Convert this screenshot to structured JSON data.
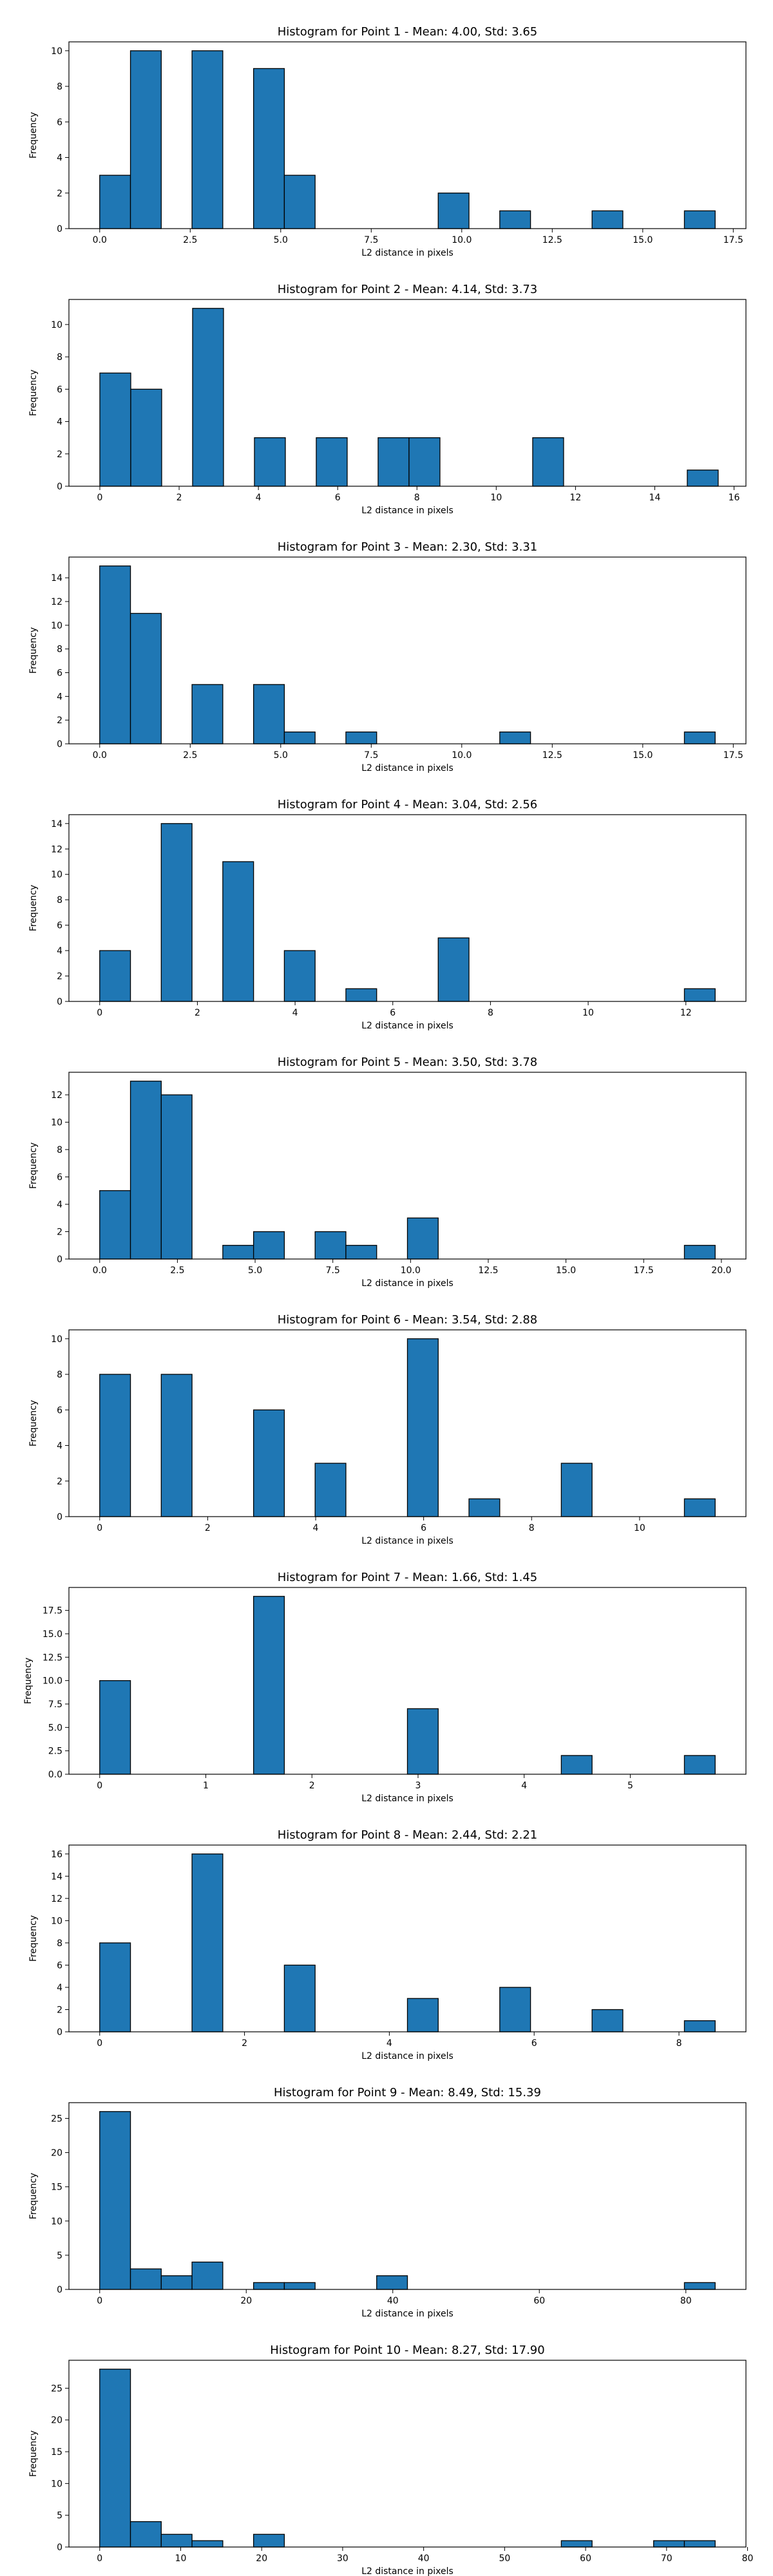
{
  "chart_data": [
    {
      "type": "bar",
      "title": "Histogram for Point 1 - Mean: 4.00, Std: 3.65",
      "xlabel": "L2 distance in pixels",
      "ylabel": "Frequency",
      "xlim": [
        -0.85,
        17.85
      ],
      "ylim": [
        0,
        10.5
      ],
      "xticks": [
        0.0,
        2.5,
        5.0,
        7.5,
        10.0,
        12.5,
        15.0,
        17.5
      ],
      "xtick_labels": [
        "0.0",
        "2.5",
        "5.0",
        "7.5",
        "10.0",
        "12.5",
        "15.0",
        "17.5"
      ],
      "yticks": [
        0,
        2,
        4,
        6,
        8,
        10
      ],
      "ytick_labels": [
        "0",
        "2",
        "4",
        "6",
        "8",
        "10"
      ],
      "bin_start": 0.0,
      "bin_width": 0.85,
      "counts": [
        3,
        10,
        0,
        10,
        0,
        9,
        3,
        0,
        0,
        0,
        0,
        2,
        0,
        1,
        0,
        0,
        1,
        0,
        0,
        1
      ]
    },
    {
      "type": "bar",
      "title": "Histogram for Point 2 - Mean: 4.14, Std: 3.73",
      "xlabel": "L2 distance in pixels",
      "ylabel": "Frequency",
      "xlim": [
        -0.78,
        16.3
      ],
      "ylim": [
        0,
        11.55
      ],
      "xticks": [
        0,
        2,
        4,
        6,
        8,
        10,
        12,
        14,
        16
      ],
      "xtick_labels": [
        "0",
        "2",
        "4",
        "6",
        "8",
        "10",
        "12",
        "14",
        "16"
      ],
      "yticks": [
        0,
        2,
        4,
        6,
        8,
        10
      ],
      "ytick_labels": [
        "0",
        "2",
        "4",
        "6",
        "8",
        "10"
      ],
      "bin_start": 0.0,
      "bin_width": 0.78,
      "counts": [
        7,
        6,
        0,
        11,
        0,
        3,
        0,
        3,
        0,
        3,
        3,
        0,
        0,
        0,
        3,
        0,
        0,
        0,
        0,
        1
      ]
    },
    {
      "type": "bar",
      "title": "Histogram for Point 3 - Mean: 2.30, Std: 3.31",
      "xlabel": "L2 distance in pixels",
      "ylabel": "Frequency",
      "xlim": [
        -0.85,
        17.85
      ],
      "ylim": [
        0,
        15.75
      ],
      "xticks": [
        0.0,
        2.5,
        5.0,
        7.5,
        10.0,
        12.5,
        15.0,
        17.5
      ],
      "xtick_labels": [
        "0.0",
        "2.5",
        "5.0",
        "7.5",
        "10.0",
        "12.5",
        "15.0",
        "17.5"
      ],
      "yticks": [
        0,
        2,
        4,
        6,
        8,
        10,
        12,
        14
      ],
      "ytick_labels": [
        "0",
        "2",
        "4",
        "6",
        "8",
        "10",
        "12",
        "14"
      ],
      "bin_start": 0.0,
      "bin_width": 0.85,
      "counts": [
        15,
        11,
        0,
        5,
        0,
        5,
        1,
        0,
        1,
        0,
        0,
        0,
        0,
        1,
        0,
        0,
        0,
        0,
        0,
        1
      ]
    },
    {
      "type": "bar",
      "title": "Histogram for Point 4 - Mean: 3.04, Std: 2.56",
      "xlabel": "L2 distance in pixels",
      "ylabel": "Frequency",
      "xlim": [
        -0.63,
        13.23
      ],
      "ylim": [
        0,
        14.7
      ],
      "xticks": [
        0,
        2,
        4,
        6,
        8,
        10,
        12
      ],
      "xtick_labels": [
        "0",
        "2",
        "4",
        "6",
        "8",
        "10",
        "12"
      ],
      "yticks": [
        0,
        2,
        4,
        6,
        8,
        10,
        12,
        14
      ],
      "ytick_labels": [
        "0",
        "2",
        "4",
        "6",
        "8",
        "10",
        "12",
        "14"
      ],
      "bin_start": 0.0,
      "bin_width": 0.63,
      "counts": [
        4,
        0,
        14,
        0,
        11,
        0,
        4,
        0,
        1,
        0,
        0,
        5,
        0,
        0,
        0,
        0,
        0,
        0,
        0,
        1
      ]
    },
    {
      "type": "bar",
      "title": "Histogram for Point 5 - Mean: 3.50, Std: 3.78",
      "xlabel": "L2 distance in pixels",
      "ylabel": "Frequency",
      "xlim": [
        -0.99,
        20.79
      ],
      "ylim": [
        0,
        13.65
      ],
      "xticks": [
        0.0,
        2.5,
        5.0,
        7.5,
        10.0,
        12.5,
        15.0,
        17.5,
        20.0
      ],
      "xtick_labels": [
        "0.0",
        "2.5",
        "5.0",
        "7.5",
        "10.0",
        "12.5",
        "15.0",
        "17.5",
        "20.0"
      ],
      "yticks": [
        0,
        2,
        4,
        6,
        8,
        10,
        12
      ],
      "ytick_labels": [
        "0",
        "2",
        "4",
        "6",
        "8",
        "10",
        "12"
      ],
      "bin_start": 0.0,
      "bin_width": 0.99,
      "counts": [
        5,
        13,
        12,
        0,
        1,
        2,
        0,
        2,
        1,
        0,
        3,
        0,
        0,
        0,
        0,
        0,
        0,
        0,
        0,
        1
      ]
    },
    {
      "type": "bar",
      "title": "Histogram for Point 6 - Mean: 3.54, Std: 2.88",
      "xlabel": "L2 distance in pixels",
      "ylabel": "Frequency",
      "xlim": [
        -0.57,
        11.97
      ],
      "ylim": [
        0,
        10.5
      ],
      "xticks": [
        0,
        2,
        4,
        6,
        8,
        10
      ],
      "xtick_labels": [
        "0",
        "2",
        "4",
        "6",
        "8",
        "10"
      ],
      "yticks": [
        0,
        2,
        4,
        6,
        8,
        10
      ],
      "ytick_labels": [
        "0",
        "2",
        "4",
        "6",
        "8",
        "10"
      ],
      "bin_start": 0.0,
      "bin_width": 0.57,
      "counts": [
        8,
        0,
        8,
        0,
        0,
        6,
        0,
        3,
        0,
        0,
        10,
        0,
        1,
        0,
        0,
        3,
        0,
        0,
        0,
        1
      ]
    },
    {
      "type": "bar",
      "title": "Histogram for Point 7 - Mean: 1.66, Std: 1.45",
      "xlabel": "L2 distance in pixels",
      "ylabel": "Frequency",
      "xlim": [
        -0.29,
        6.09
      ],
      "ylim": [
        0,
        19.95
      ],
      "xticks": [
        0,
        1,
        2,
        3,
        4,
        5
      ],
      "xtick_labels": [
        "0",
        "1",
        "2",
        "3",
        "4",
        "5"
      ],
      "yticks": [
        0,
        2.5,
        5,
        7.5,
        10,
        12.5,
        15,
        17.5
      ],
      "ytick_labels": [
        "0.0",
        "2.5",
        "5.0",
        "7.5",
        "10.0",
        "12.5",
        "15.0",
        "17.5"
      ],
      "bin_start": 0.0,
      "bin_width": 0.29,
      "counts": [
        10,
        0,
        0,
        0,
        0,
        19,
        0,
        0,
        0,
        0,
        7,
        0,
        0,
        0,
        0,
        2,
        0,
        0,
        0,
        2
      ]
    },
    {
      "type": "bar",
      "title": "Histogram for Point 8 - Mean: 2.44, Std: 2.21",
      "xlabel": "L2 distance in pixels",
      "ylabel": "Frequency",
      "xlim": [
        -0.425,
        8.925
      ],
      "ylim": [
        0,
        16.8
      ],
      "xticks": [
        0,
        2,
        4,
        6,
        8
      ],
      "xtick_labels": [
        "0",
        "2",
        "4",
        "6",
        "8"
      ],
      "yticks": [
        0,
        2,
        4,
        6,
        8,
        10,
        12,
        14,
        16
      ],
      "ytick_labels": [
        "0",
        "2",
        "4",
        "6",
        "8",
        "10",
        "12",
        "14",
        "16"
      ],
      "bin_start": 0.0,
      "bin_width": 0.425,
      "counts": [
        8,
        0,
        0,
        16,
        0,
        0,
        6,
        0,
        0,
        0,
        3,
        0,
        0,
        4,
        0,
        0,
        2,
        0,
        0,
        1
      ]
    },
    {
      "type": "bar",
      "title": "Histogram for Point 9 - Mean: 8.49, Std: 15.39",
      "xlabel": "L2 distance in pixels",
      "ylabel": "Frequency",
      "xlim": [
        -4.2,
        88.2
      ],
      "ylim": [
        0,
        27.3
      ],
      "xticks": [
        0,
        20,
        40,
        60,
        80
      ],
      "xtick_labels": [
        "0",
        "20",
        "40",
        "60",
        "80"
      ],
      "yticks": [
        0,
        5,
        10,
        15,
        20,
        25
      ],
      "ytick_labels": [
        "0",
        "5",
        "10",
        "15",
        "20",
        "25"
      ],
      "bin_start": 0.0,
      "bin_width": 4.2,
      "counts": [
        26,
        3,
        2,
        4,
        0,
        1,
        1,
        0,
        0,
        2,
        0,
        0,
        0,
        0,
        0,
        0,
        0,
        0,
        0,
        1
      ]
    },
    {
      "type": "bar",
      "title": "Histogram for Point 10 - Mean: 8.27, Std: 17.90",
      "xlabel": "L2 distance in pixels",
      "ylabel": "Frequency",
      "xlim": [
        -3.8,
        79.8
      ],
      "ylim": [
        0,
        29.4
      ],
      "xticks": [
        0,
        10,
        20,
        30,
        40,
        50,
        60,
        70,
        80
      ],
      "xtick_labels": [
        "0",
        "10",
        "20",
        "30",
        "40",
        "50",
        "60",
        "70",
        "80"
      ],
      "yticks": [
        0,
        5,
        10,
        15,
        20,
        25
      ],
      "ytick_labels": [
        "0",
        "5",
        "10",
        "15",
        "20",
        "25"
      ],
      "bin_start": 0.0,
      "bin_width": 3.8,
      "counts": [
        28,
        4,
        2,
        1,
        0,
        2,
        0,
        0,
        0,
        0,
        0,
        0,
        0,
        0,
        0,
        1,
        0,
        0,
        1,
        1
      ]
    }
  ],
  "colors": {
    "bar_fill": "#1f77b4",
    "bar_edge": "#000000"
  }
}
